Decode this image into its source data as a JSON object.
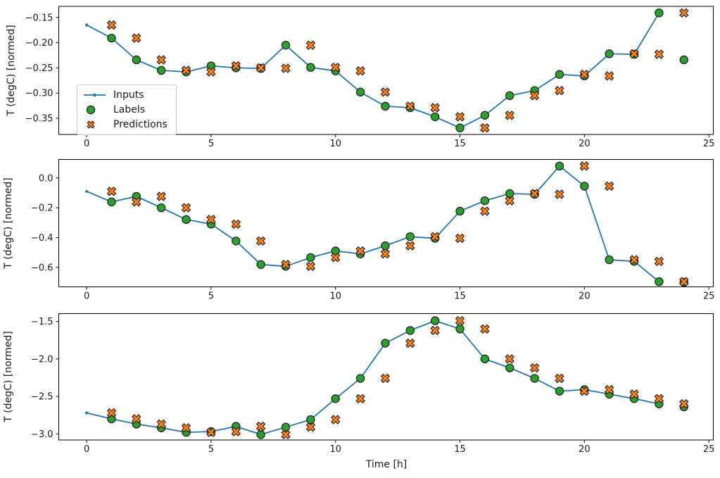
{
  "figure": {
    "background": "#ffffff",
    "n_subplots": 3,
    "xlabel": "Time [h]",
    "ylabel": "T (degC) [normed]"
  },
  "legend": {
    "items": [
      {
        "label": "Inputs",
        "marker": "line-dot",
        "color": "#1f77b4"
      },
      {
        "label": "Labels",
        "marker": "circle",
        "color": "#2ca02c"
      },
      {
        "label": "Predictions",
        "marker": "x-cross",
        "color": "#ff7f0e"
      }
    ]
  },
  "colors": {
    "inputs_line": "#1f77b4",
    "labels_fill": "#2ca02c",
    "predictions_fill": "#ff7f0e",
    "marker_edge": "#1f1f1f",
    "axis": "#000000",
    "text": "#1a1a1a"
  },
  "chart_data": [
    {
      "type": "line",
      "title": "",
      "xlabel": "",
      "ylabel": "T (degC) [normed]",
      "grid": false,
      "legend_position": "upper-left-inside",
      "xlim": [
        -1.12,
        25.18
      ],
      "ylim": [
        -0.382,
        -0.128
      ],
      "xticks": {
        "values": [
          0,
          5,
          10,
          15,
          20,
          25
        ],
        "labels": [
          "0",
          "5",
          "10",
          "15",
          "20",
          "25"
        ]
      },
      "yticks": {
        "values": [
          -0.15,
          -0.2,
          -0.25,
          -0.3,
          -0.35
        ],
        "labels": [
          "−0.15",
          "−0.20",
          "−0.25",
          "−0.30",
          "−0.35"
        ]
      },
      "series": [
        {
          "name": "Inputs",
          "kind": "line",
          "marker": "dot",
          "color": "#1f77b4",
          "x": [
            0,
            1,
            2,
            3,
            4,
            5,
            6,
            7,
            8,
            9,
            10,
            11,
            12,
            13,
            14,
            15,
            16,
            17,
            18,
            19,
            20,
            21,
            22,
            23
          ],
          "y": [
            -0.165,
            -0.191,
            -0.234,
            -0.255,
            -0.258,
            -0.246,
            -0.25,
            -0.251,
            -0.205,
            -0.249,
            -0.256,
            -0.298,
            -0.326,
            -0.329,
            -0.347,
            -0.369,
            -0.344,
            -0.305,
            -0.295,
            -0.263,
            -0.266,
            -0.222,
            -0.223,
            -0.141
          ]
        },
        {
          "name": "Labels",
          "kind": "scatter",
          "marker": "circle",
          "color": "#2ca02c",
          "x": [
            1,
            2,
            3,
            4,
            5,
            6,
            7,
            8,
            9,
            10,
            11,
            12,
            13,
            14,
            15,
            16,
            17,
            18,
            19,
            20,
            21,
            22,
            23,
            24
          ],
          "y": [
            -0.191,
            -0.234,
            -0.255,
            -0.258,
            -0.246,
            -0.25,
            -0.251,
            -0.205,
            -0.249,
            -0.256,
            -0.298,
            -0.326,
            -0.329,
            -0.347,
            -0.369,
            -0.344,
            -0.305,
            -0.295,
            -0.263,
            -0.266,
            -0.222,
            -0.223,
            -0.141,
            -0.234
          ]
        },
        {
          "name": "Predictions",
          "kind": "scatter",
          "marker": "X",
          "color": "#ff7f0e",
          "x": [
            1,
            2,
            3,
            4,
            5,
            6,
            7,
            8,
            9,
            10,
            11,
            12,
            13,
            14,
            15,
            16,
            17,
            18,
            19,
            20,
            21,
            22,
            23,
            24
          ],
          "y": [
            -0.165,
            -0.191,
            -0.234,
            -0.255,
            -0.258,
            -0.246,
            -0.25,
            -0.251,
            -0.205,
            -0.249,
            -0.256,
            -0.298,
            -0.326,
            -0.329,
            -0.347,
            -0.369,
            -0.344,
            -0.305,
            -0.295,
            -0.263,
            -0.266,
            -0.222,
            -0.223,
            -0.141
          ]
        }
      ]
    },
    {
      "type": "line",
      "title": "",
      "xlabel": "",
      "ylabel": "T (degC) [normed]",
      "grid": false,
      "xlim": [
        -1.12,
        25.18
      ],
      "ylim": [
        -0.731,
        0.124
      ],
      "xticks": {
        "values": [
          0,
          5,
          10,
          15,
          20,
          25
        ],
        "labels": [
          "0",
          "5",
          "10",
          "15",
          "20",
          "25"
        ]
      },
      "yticks": {
        "values": [
          0.0,
          -0.2,
          -0.4,
          -0.6
        ],
        "labels": [
          "0.0",
          "−0.2",
          "−0.4",
          "−0.6"
        ]
      },
      "series": [
        {
          "name": "Inputs",
          "kind": "line",
          "marker": "dot",
          "color": "#1f77b4",
          "x": [
            0,
            1,
            2,
            3,
            4,
            5,
            6,
            7,
            8,
            9,
            10,
            11,
            12,
            13,
            14,
            15,
            16,
            17,
            18,
            19,
            20,
            21,
            22,
            23
          ],
          "y": [
            -0.09,
            -0.161,
            -0.124,
            -0.2,
            -0.279,
            -0.31,
            -0.423,
            -0.581,
            -0.593,
            -0.534,
            -0.49,
            -0.51,
            -0.455,
            -0.394,
            -0.405,
            -0.223,
            -0.153,
            -0.105,
            -0.11,
            0.08,
            -0.055,
            -0.549,
            -0.56,
            -0.696
          ]
        },
        {
          "name": "Labels",
          "kind": "scatter",
          "marker": "circle",
          "color": "#2ca02c",
          "x": [
            1,
            2,
            3,
            4,
            5,
            6,
            7,
            8,
            9,
            10,
            11,
            12,
            13,
            14,
            15,
            16,
            17,
            18,
            19,
            20,
            21,
            22,
            23,
            24
          ],
          "y": [
            -0.161,
            -0.124,
            -0.2,
            -0.279,
            -0.31,
            -0.423,
            -0.581,
            -0.593,
            -0.534,
            -0.49,
            -0.51,
            -0.455,
            -0.394,
            -0.405,
            -0.223,
            -0.153,
            -0.105,
            -0.11,
            0.08,
            -0.055,
            -0.549,
            -0.56,
            -0.696,
            -0.7
          ]
        },
        {
          "name": "Predictions",
          "kind": "scatter",
          "marker": "X",
          "color": "#ff7f0e",
          "x": [
            1,
            2,
            3,
            4,
            5,
            6,
            7,
            8,
            9,
            10,
            11,
            12,
            13,
            14,
            15,
            16,
            17,
            18,
            19,
            20,
            21,
            22,
            23,
            24
          ],
          "y": [
            -0.09,
            -0.161,
            -0.124,
            -0.2,
            -0.279,
            -0.31,
            -0.423,
            -0.581,
            -0.593,
            -0.534,
            -0.49,
            -0.51,
            -0.455,
            -0.394,
            -0.405,
            -0.223,
            -0.153,
            -0.105,
            -0.11,
            0.08,
            -0.055,
            -0.549,
            -0.56,
            -0.696
          ]
        }
      ]
    },
    {
      "type": "line",
      "title": "",
      "xlabel": "Time [h]",
      "ylabel": "T (degC) [normed]",
      "grid": false,
      "xlim": [
        -1.12,
        25.18
      ],
      "ylim": [
        -3.082,
        -1.395
      ],
      "xticks": {
        "values": [
          0,
          5,
          10,
          15,
          20,
          25
        ],
        "labels": [
          "0",
          "5",
          "10",
          "15",
          "20",
          "25"
        ]
      },
      "yticks": {
        "values": [
          -1.5,
          -2.0,
          -2.5,
          -3.0
        ],
        "labels": [
          "−1.5",
          "−2.0",
          "−2.5",
          "−3.0"
        ]
      },
      "series": [
        {
          "name": "Inputs",
          "kind": "line",
          "marker": "dot",
          "color": "#1f77b4",
          "x": [
            0,
            1,
            2,
            3,
            4,
            5,
            6,
            7,
            8,
            9,
            10,
            11,
            12,
            13,
            14,
            15,
            16,
            17,
            18,
            19,
            20,
            21,
            22,
            23
          ],
          "y": [
            -2.72,
            -2.8,
            -2.87,
            -2.92,
            -2.98,
            -2.97,
            -2.9,
            -3.01,
            -2.91,
            -2.81,
            -2.53,
            -2.26,
            -1.79,
            -1.62,
            -1.49,
            -1.6,
            -2.0,
            -2.12,
            -2.26,
            -2.43,
            -2.41,
            -2.47,
            -2.53,
            -2.6
          ]
        },
        {
          "name": "Labels",
          "kind": "scatter",
          "marker": "circle",
          "color": "#2ca02c",
          "x": [
            1,
            2,
            3,
            4,
            5,
            6,
            7,
            8,
            9,
            10,
            11,
            12,
            13,
            14,
            15,
            16,
            17,
            18,
            19,
            20,
            21,
            22,
            23,
            24
          ],
          "y": [
            -2.8,
            -2.87,
            -2.92,
            -2.98,
            -2.97,
            -2.9,
            -3.01,
            -2.91,
            -2.81,
            -2.53,
            -2.26,
            -1.79,
            -1.62,
            -1.49,
            -1.6,
            -2.0,
            -2.12,
            -2.26,
            -2.43,
            -2.41,
            -2.47,
            -2.53,
            -2.6,
            -2.64
          ]
        },
        {
          "name": "Predictions",
          "kind": "scatter",
          "marker": "X",
          "color": "#ff7f0e",
          "x": [
            1,
            2,
            3,
            4,
            5,
            6,
            7,
            8,
            9,
            10,
            11,
            12,
            13,
            14,
            15,
            16,
            17,
            18,
            19,
            20,
            21,
            22,
            23,
            24
          ],
          "y": [
            -2.72,
            -2.8,
            -2.87,
            -2.92,
            -2.98,
            -2.97,
            -2.9,
            -3.01,
            -2.91,
            -2.81,
            -2.53,
            -2.26,
            -1.79,
            -1.62,
            -1.49,
            -1.6,
            -2.0,
            -2.12,
            -2.26,
            -2.43,
            -2.41,
            -2.47,
            -2.53,
            -2.6
          ]
        }
      ]
    }
  ]
}
